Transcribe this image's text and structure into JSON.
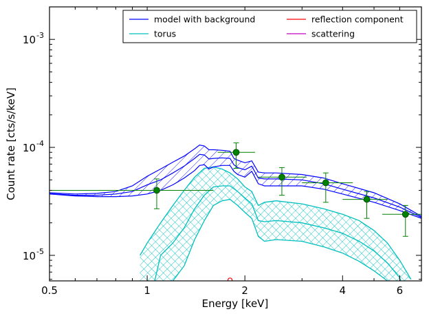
{
  "chart_data": {
    "type": "line",
    "xlabel": "Energy [keV]",
    "ylabel": "Count rate [cts/s/keV]",
    "xscale": "log",
    "yscale": "log",
    "xlim": [
      0.5,
      7.0
    ],
    "ylim": [
      5.8e-06,
      0.002
    ],
    "grid": false,
    "legend_placement": "top-right",
    "legend_columns": 2,
    "x_ticks": [
      {
        "value": 0.5,
        "label": "0.5"
      },
      {
        "value": 1,
        "label": "1"
      },
      {
        "value": 2,
        "label": "2"
      },
      {
        "value": 4,
        "label": "4"
      },
      {
        "value": 6,
        "label": "6"
      }
    ],
    "y_ticks": [
      {
        "value": 1e-05,
        "base": "10",
        "exp": "-5"
      },
      {
        "value": 0.0001,
        "base": "10",
        "exp": "-4"
      },
      {
        "value": 0.001,
        "base": "10",
        "exp": "-3"
      }
    ],
    "legend": [
      {
        "label": "model with background",
        "color": "#0000ff"
      },
      {
        "label": "reflection component",
        "color": "#ff0000"
      },
      {
        "label": "torus",
        "color": "#00bfbf"
      },
      {
        "label": "scattering",
        "color": "#bf00bf"
      }
    ],
    "series": [
      {
        "name": "model with background",
        "color": "#0000ff",
        "hatch": "diagonal",
        "x": [
          0.5,
          0.6,
          0.7,
          0.8,
          0.9,
          1.0,
          1.1,
          1.2,
          1.3,
          1.4,
          1.45,
          1.5,
          1.55,
          1.6,
          1.7,
          1.8,
          1.85,
          1.9,
          2.0,
          2.1,
          2.2,
          2.3,
          2.5,
          3.0,
          3.5,
          4.0,
          5.0,
          6.0,
          7.0
        ],
        "upper": [
          3.8e-05,
          3.7e-05,
          3.75e-05,
          3.9e-05,
          4.4e-05,
          5.4e-05,
          6.3e-05,
          7.3e-05,
          8.3e-05,
          9.7e-05,
          0.000105,
          0.000103,
          9.5e-05,
          9.5e-05,
          9.4e-05,
          9.2e-05,
          7.9e-05,
          7.6e-05,
          7.2e-05,
          7.5e-05,
          5.9e-05,
          5.8e-05,
          5.8e-05,
          5.6e-05,
          5.2e-05,
          4.6e-05,
          3.8e-05,
          3e-05,
          2.3e-05
        ],
        "lower": [
          3.7e-05,
          3.55e-05,
          3.5e-05,
          3.5e-05,
          3.55e-05,
          3.7e-05,
          4e-05,
          4.5e-05,
          5.2e-05,
          6.1e-05,
          6.8e-05,
          6.9e-05,
          6.3e-05,
          6.6e-05,
          6.8e-05,
          6.8e-05,
          6e-05,
          5.6e-05,
          5.3e-05,
          6e-05,
          4.6e-05,
          4.4e-05,
          4.4e-05,
          4.4e-05,
          4.1e-05,
          3.7e-05,
          3.1e-05,
          2.6e-05,
          2.2e-05
        ],
        "middle": [
          3.72e-05,
          3.6e-05,
          3.6e-05,
          3.7e-05,
          3.9e-05,
          4.5e-05,
          5e-05,
          5.8e-05,
          6.7e-05,
          7.9e-05,
          8.6e-05,
          8.5e-05,
          7.8e-05,
          7.9e-05,
          8e-05,
          7.9e-05,
          6.9e-05,
          6.5e-05,
          6.2e-05,
          6.7e-05,
          5.2e-05,
          5.1e-05,
          5.1e-05,
          5e-05,
          4.6e-05,
          4.1e-05,
          3.4e-05,
          2.8e-05,
          2.25e-05
        ]
      },
      {
        "name": "torus",
        "color": "#00bfbf",
        "hatch": "cross",
        "x": [
          0.95,
          1.0,
          1.1,
          1.2,
          1.3,
          1.4,
          1.5,
          1.6,
          1.7,
          1.8,
          1.9,
          2.0,
          2.1,
          2.2,
          2.3,
          2.5,
          3.0,
          3.5,
          4.0,
          4.5,
          5.0,
          5.5,
          6.0,
          6.5
        ],
        "upper": [
          1e-05,
          1.3e-05,
          2e-05,
          2.9e-05,
          4e-05,
          5.3e-05,
          6.4e-05,
          6.6e-05,
          6.3e-05,
          5.8e-05,
          5.1e-05,
          4.3e-05,
          3.9e-05,
          2.9e-05,
          3.1e-05,
          3.2e-05,
          3e-05,
          2.7e-05,
          2.4e-05,
          2.1e-05,
          1.7e-05,
          1.3e-05,
          9e-06,
          6e-06
        ],
        "lower": [
          null,
          null,
          null,
          5.8e-06,
          8e-06,
          1.4e-05,
          2.1e-05,
          2.9e-05,
          3.2e-05,
          3.3e-05,
          2.9e-05,
          2.5e-05,
          2.2e-05,
          1.5e-05,
          1.35e-05,
          1.4e-05,
          1.35e-05,
          1.2e-05,
          1.05e-05,
          8.8e-06,
          7.2e-06,
          5.8e-06,
          null,
          null
        ],
        "middle": [
          null,
          null,
          1e-05,
          1.3e-05,
          1.8e-05,
          2.7e-05,
          3.6e-05,
          4.3e-05,
          4.4e-05,
          4.4e-05,
          3.9e-05,
          3.4e-05,
          3e-05,
          2.1e-05,
          2.05e-05,
          2.1e-05,
          2e-05,
          1.8e-05,
          1.6e-05,
          1.35e-05,
          1.1e-05,
          8.5e-06,
          6.2e-06,
          null
        ]
      },
      {
        "name": "data",
        "color": "#008000",
        "type": "errorbar",
        "points": [
          {
            "x": 1.07,
            "y": 4e-05,
            "xerr": [
              0.5,
              1.6
            ],
            "yerr": [
              2.7e-05,
              5.1e-05
            ]
          },
          {
            "x": 1.88,
            "y": 9e-05,
            "xerr": [
              1.65,
              2.15
            ],
            "yerr": [
              6.4e-05,
              0.00011
            ]
          },
          {
            "x": 2.6,
            "y": 5.3e-05,
            "xerr": [
              2.2,
              3.1
            ],
            "yerr": [
              3.6e-05,
              6.5e-05
            ]
          },
          {
            "x": 3.55,
            "y": 4.7e-05,
            "xerr": [
              3.0,
              4.3
            ],
            "yerr": [
              3.1e-05,
              5.8e-05
            ]
          },
          {
            "x": 4.75,
            "y": 3.3e-05,
            "xerr": [
              4.0,
              5.5
            ],
            "yerr": [
              2.2e-05,
              3.9e-05
            ]
          },
          {
            "x": 6.25,
            "y": 2.4e-05,
            "xerr": [
              5.3,
              7.0
            ],
            "yerr": [
              1.5e-05,
              2.9e-05
            ]
          }
        ]
      },
      {
        "name": "reflection component",
        "color": "#ff0000",
        "x": [
          1.8
        ],
        "y": [
          5.9e-06
        ]
      }
    ]
  }
}
